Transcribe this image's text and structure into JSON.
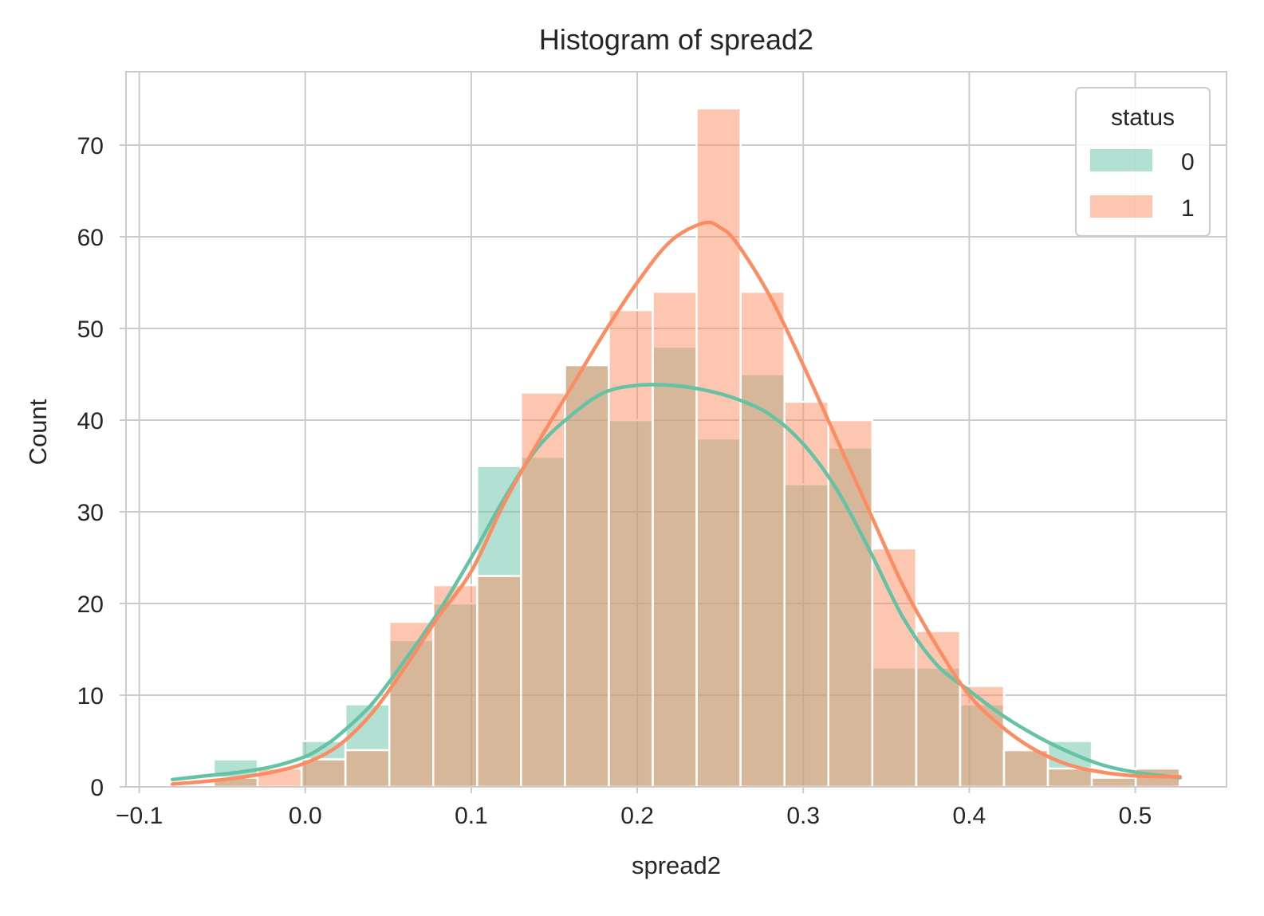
{
  "chart_data": {
    "type": "bar",
    "title": "Histogram of spread2",
    "xlabel": "spread2",
    "ylabel": "Count",
    "xlim": [
      -0.108,
      0.555
    ],
    "ylim": [
      0,
      78
    ],
    "xticks": [
      -0.1,
      0.0,
      0.1,
      0.2,
      0.3,
      0.4,
      0.5
    ],
    "xtick_labels": [
      "−0.1",
      "0.0",
      "0.1",
      "0.2",
      "0.3",
      "0.4",
      "0.5"
    ],
    "yticks": [
      0,
      10,
      20,
      30,
      40,
      50,
      60,
      70
    ],
    "ytick_labels": [
      "0",
      "10",
      "20",
      "30",
      "40",
      "50",
      "60",
      "70"
    ],
    "grid": true,
    "legend": {
      "title": "status",
      "position": "top-right"
    },
    "bin_start": -0.0816,
    "bin_width": 0.02645,
    "series": [
      {
        "name": "0",
        "color": "#66c2a5",
        "values": [
          0,
          3,
          0,
          5,
          9,
          16,
          20,
          35,
          36,
          46,
          40,
          48,
          38,
          45,
          33,
          37,
          13,
          13,
          9,
          4,
          5,
          1,
          2
        ],
        "kde": [
          [
            -0.08,
            0.8
          ],
          [
            -0.06,
            1.2
          ],
          [
            -0.04,
            1.6
          ],
          [
            -0.02,
            2.2
          ],
          [
            0.0,
            3.3
          ],
          [
            0.01,
            4.3
          ],
          [
            0.02,
            5.6
          ],
          [
            0.04,
            9.0
          ],
          [
            0.06,
            13.8
          ],
          [
            0.08,
            19.0
          ],
          [
            0.1,
            25.0
          ],
          [
            0.12,
            31.5
          ],
          [
            0.14,
            37.0
          ],
          [
            0.16,
            40.5
          ],
          [
            0.18,
            43.0
          ],
          [
            0.2,
            43.8
          ],
          [
            0.22,
            43.8
          ],
          [
            0.24,
            43.3
          ],
          [
            0.26,
            42.3
          ],
          [
            0.28,
            40.6
          ],
          [
            0.3,
            37.4
          ],
          [
            0.32,
            32.5
          ],
          [
            0.34,
            25.8
          ],
          [
            0.36,
            18.5
          ],
          [
            0.38,
            13.4
          ],
          [
            0.4,
            10.5
          ],
          [
            0.42,
            7.8
          ],
          [
            0.44,
            5.6
          ],
          [
            0.46,
            3.8
          ],
          [
            0.48,
            2.4
          ],
          [
            0.5,
            1.6
          ],
          [
            0.527,
            1.0
          ]
        ]
      },
      {
        "name": "1",
        "color": "#fc8d62",
        "values": [
          0,
          1,
          2,
          3,
          4,
          18,
          22,
          23,
          43,
          46,
          52,
          54,
          74,
          54,
          42,
          40,
          26,
          17,
          11,
          4,
          2,
          1,
          2
        ],
        "kde": [
          [
            -0.08,
            0.3
          ],
          [
            -0.06,
            0.6
          ],
          [
            -0.04,
            1.0
          ],
          [
            -0.02,
            1.6
          ],
          [
            0.0,
            2.6
          ],
          [
            0.02,
            4.5
          ],
          [
            0.04,
            8.0
          ],
          [
            0.06,
            13.0
          ],
          [
            0.08,
            18.5
          ],
          [
            0.1,
            23.5
          ],
          [
            0.12,
            31.0
          ],
          [
            0.14,
            37.5
          ],
          [
            0.16,
            43.5
          ],
          [
            0.18,
            49.5
          ],
          [
            0.2,
            55.0
          ],
          [
            0.22,
            59.5
          ],
          [
            0.24,
            61.5
          ],
          [
            0.25,
            61.0
          ],
          [
            0.26,
            59.3
          ],
          [
            0.28,
            53.5
          ],
          [
            0.3,
            46.0
          ],
          [
            0.32,
            38.0
          ],
          [
            0.34,
            30.0
          ],
          [
            0.36,
            22.0
          ],
          [
            0.38,
            15.5
          ],
          [
            0.4,
            10.0
          ],
          [
            0.42,
            6.5
          ],
          [
            0.44,
            4.0
          ],
          [
            0.46,
            2.4
          ],
          [
            0.48,
            1.6
          ],
          [
            0.5,
            1.2
          ],
          [
            0.527,
            1.1
          ]
        ]
      }
    ]
  }
}
